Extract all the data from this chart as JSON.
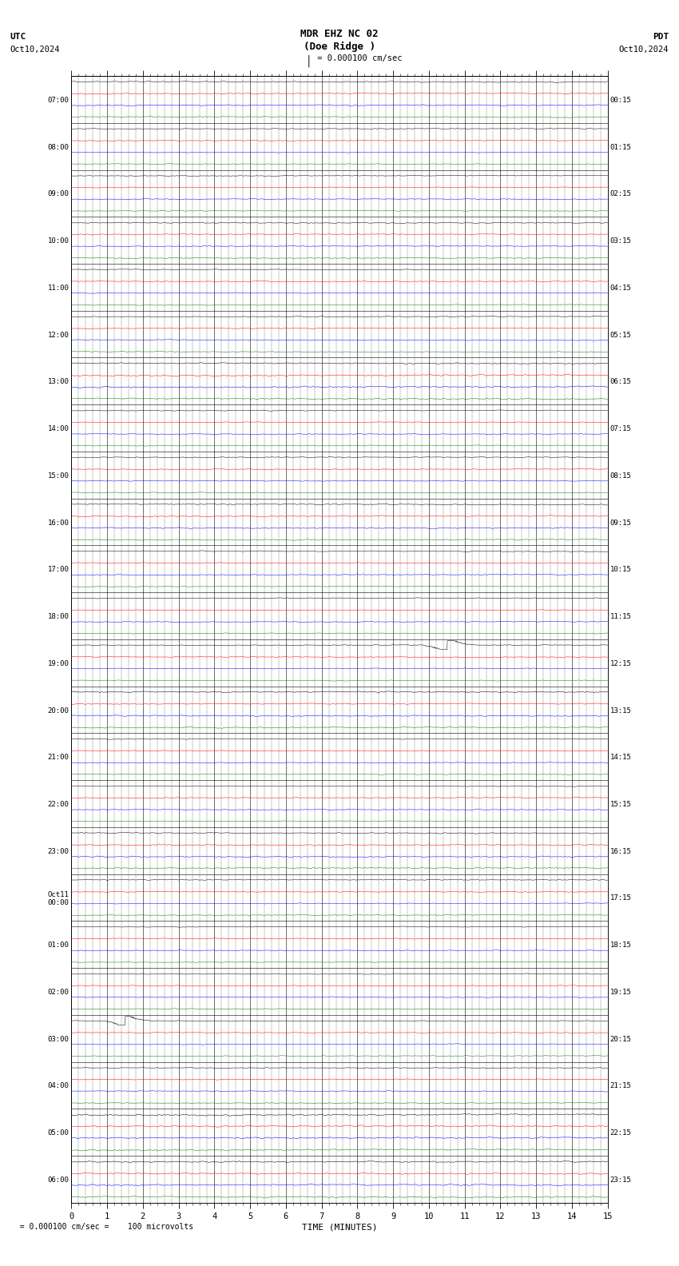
{
  "title_line1": "MDR EHZ NC 02",
  "title_line2": "(Doe Ridge )",
  "scale_text": "= 0.000100 cm/sec",
  "footnote": "  = 0.000100 cm/sec =    100 microvolts",
  "utc_label": "UTC",
  "pdt_label": "PDT",
  "date_left": "Oct10,2024",
  "date_right": "Oct10,2024",
  "xlabel": "TIME (MINUTES)",
  "bg_color": "#ffffff",
  "trace_colors": [
    "#000000",
    "#ff0000",
    "#0000ff",
    "#008000"
  ],
  "left_times": [
    "07:00",
    "08:00",
    "09:00",
    "10:00",
    "11:00",
    "12:00",
    "13:00",
    "14:00",
    "15:00",
    "16:00",
    "17:00",
    "18:00",
    "19:00",
    "20:00",
    "21:00",
    "22:00",
    "23:00",
    "Oct11\n00:00",
    "01:00",
    "02:00",
    "03:00",
    "04:00",
    "05:00",
    "06:00"
  ],
  "right_times": [
    "00:15",
    "01:15",
    "02:15",
    "03:15",
    "04:15",
    "05:15",
    "06:15",
    "07:15",
    "08:15",
    "09:15",
    "10:15",
    "11:15",
    "12:15",
    "13:15",
    "14:15",
    "15:15",
    "16:15",
    "17:15",
    "18:15",
    "19:15",
    "20:15",
    "21:15",
    "22:15",
    "23:15"
  ],
  "n_rows": 24,
  "traces_per_row": 4,
  "minutes": 15,
  "seed": 42
}
